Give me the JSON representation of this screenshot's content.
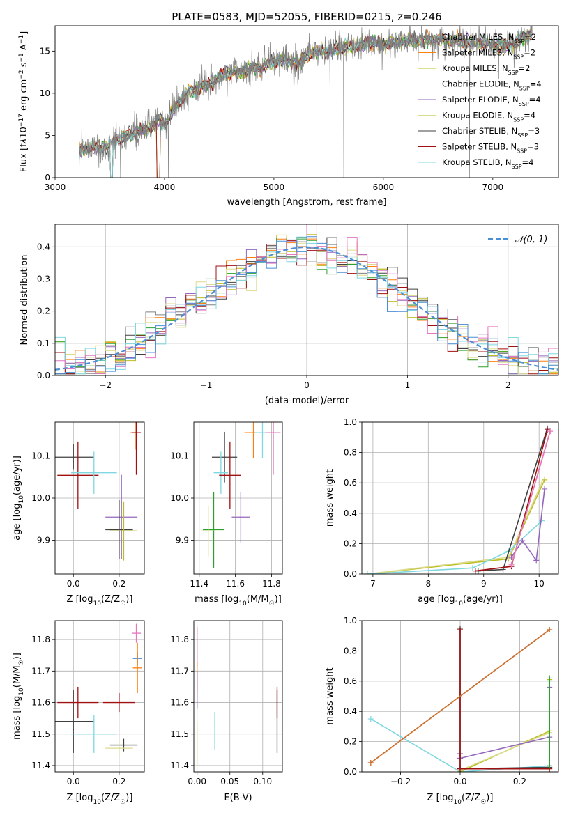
{
  "title": "PLATE=0583, MJD=52055, FIBERID=0215, z=0.246",
  "colors": {
    "chabrier_miles": "#808080",
    "salpeter_miles": "#ff7f0e",
    "kroupa_miles": "#bcbd22",
    "chabrier_elodie": "#2ca02c",
    "salpeter_elodie": "#9467bd",
    "kroupa_elodie": "#dbdb8d",
    "chabrier_stelib": "#404040",
    "salpeter_stelib": "#a01010",
    "kroupa_stelib": "#7fd8e0",
    "normal": "#4a8fd6",
    "grid": "#b0b0b0"
  },
  "legend": [
    {
      "label": "Chabrier MILES, N",
      "sub": "SSP",
      "suffix": "=2",
      "color": "#808080"
    },
    {
      "label": "Salpeter MILES, N",
      "sub": "SSP",
      "suffix": "=2",
      "color": "#ff7f0e"
    },
    {
      "label": "Kroupa MILES, N",
      "sub": "SSP",
      "suffix": "=2",
      "color": "#bcbd22"
    },
    {
      "label": "Chabrier ELODIE, N",
      "sub": "SSP",
      "suffix": "=4",
      "color": "#2ca02c"
    },
    {
      "label": "Salpeter ELODIE, N",
      "sub": "SSP",
      "suffix": "=4",
      "color": "#9467bd"
    },
    {
      "label": "Kroupa ELODIE, N",
      "sub": "SSP",
      "suffix": "=4",
      "color": "#dbdb8d"
    },
    {
      "label": "Chabrier STELIB, N",
      "sub": "SSP",
      "suffix": "=3",
      "color": "#404040"
    },
    {
      "label": "Salpeter STELIB, N",
      "sub": "SSP",
      "suffix": "=3",
      "color": "#a01010"
    },
    {
      "label": "Kroupa STELIB, N",
      "sub": "SSP",
      "suffix": "=4",
      "color": "#7fd8e0"
    }
  ],
  "chart_data": [
    {
      "type": "line",
      "xlabel": "wavelength [Angstrom, rest frame]",
      "ylabel_parts": [
        "Flux [f",
        "λ",
        "10",
        "−17",
        " erg cm",
        "−2",
        " s",
        "−1",
        " A",
        "−1",
        "]"
      ],
      "xlim": [
        3000,
        7600
      ],
      "ylim": [
        0,
        18
      ],
      "xticks": [
        3000,
        4000,
        5000,
        6000,
        7000
      ],
      "yticks": [
        0,
        5,
        10,
        15
      ],
      "continuum": [
        [
          3220,
          3.3
        ],
        [
          3300,
          3.5
        ],
        [
          3400,
          3.6
        ],
        [
          3480,
          3.5
        ],
        [
          3550,
          4.5
        ],
        [
          3650,
          5.0
        ],
        [
          3750,
          5.5
        ],
        [
          3850,
          5.8
        ],
        [
          3950,
          6.8
        ],
        [
          4000,
          6.2
        ],
        [
          4100,
          8.5
        ],
        [
          4200,
          10.0
        ],
        [
          4300,
          10.5
        ],
        [
          4400,
          11.0
        ],
        [
          4500,
          12.0
        ],
        [
          4600,
          12.5
        ],
        [
          4700,
          12.5
        ],
        [
          4800,
          13.0
        ],
        [
          4900,
          13.0
        ],
        [
          5000,
          13.8
        ],
        [
          5100,
          14.0
        ],
        [
          5200,
          13.5
        ],
        [
          5300,
          14.5
        ],
        [
          5400,
          15.0
        ],
        [
          5500,
          15.0
        ],
        [
          5600,
          15.5
        ],
        [
          5700,
          15.5
        ],
        [
          5800,
          15.8
        ],
        [
          5900,
          16.0
        ],
        [
          6000,
          15.8
        ],
        [
          6100,
          16.0
        ],
        [
          6200,
          16.2
        ],
        [
          6300,
          16.2
        ],
        [
          6400,
          16.3
        ],
        [
          6500,
          16.3
        ],
        [
          6600,
          16.2
        ],
        [
          6700,
          16.2
        ],
        [
          6800,
          16.0
        ],
        [
          6900,
          16.0
        ],
        [
          7000,
          15.8
        ],
        [
          7100,
          15.5
        ],
        [
          7200,
          16.0
        ],
        [
          7350,
          17.0
        ]
      ]
    },
    {
      "type": "histogram",
      "xlabel": "(data-model)/error",
      "ylabel": "Normed distribution",
      "xlim": [
        -2.5,
        2.5
      ],
      "ylim": [
        0,
        0.47
      ],
      "xticks": [
        -2,
        -1,
        0,
        1,
        2
      ],
      "xtick_labels": [
        "−2",
        "−1",
        "0",
        "1",
        "2"
      ],
      "yticks": [
        0.0,
        0.1,
        0.2,
        0.3,
        0.4
      ],
      "bin_width": 0.1,
      "legend_label": "𝒩(0, 1)"
    },
    {
      "type": "scatter",
      "name": "age_vs_Z",
      "xlabel_parts": [
        "Z [log",
        "10",
        "(Z/Z",
        "☉",
        ")]"
      ],
      "ylabel_parts": [
        "age  [log",
        "10",
        "(age/yr)]"
      ],
      "xlim": [
        -0.08,
        0.31
      ],
      "ylim": [
        9.82,
        10.18
      ],
      "xticks": [
        0.0,
        0.2
      ],
      "yticks": [
        9.9,
        10.0,
        10.1
      ],
      "points": [
        {
          "x": 0.0,
          "y": 10.097,
          "xerr": 0.09,
          "yerr": 0.03,
          "c": "#404040"
        },
        {
          "x": 0.02,
          "y": 10.054,
          "xerr": 0.09,
          "yerr": 0.08,
          "c": "#a01010"
        },
        {
          "x": 0.09,
          "y": 10.06,
          "xerr": 0.1,
          "yerr": 0.05,
          "c": "#7fd8e0"
        },
        {
          "x": 0.21,
          "y": 9.955,
          "xerr": 0.07,
          "yerr": 0.1,
          "c": "#9467bd"
        },
        {
          "x": 0.2,
          "y": 9.925,
          "xerr": 0.06,
          "yerr": 0.07,
          "c": "#404040"
        },
        {
          "x": 0.22,
          "y": 9.922,
          "xerr": 0.06,
          "yerr": 0.07,
          "c": "#bcbd22"
        },
        {
          "x": 0.27,
          "y": 10.155,
          "xerr": 0.02,
          "yerr": 0.04,
          "c": "#e377c2"
        },
        {
          "x": 0.27,
          "y": 10.155,
          "xerr": 0.02,
          "yerr": 0.04,
          "c": "#ff7f0e"
        },
        {
          "x": 0.275,
          "y": 10.155,
          "xerr": 0.02,
          "yerr": 0.1,
          "c": "#a01010"
        }
      ]
    },
    {
      "type": "scatter",
      "name": "age_vs_mass",
      "xlabel_parts": [
        "mass [log",
        "10",
        "(M/M",
        "☉",
        ")]"
      ],
      "xlim": [
        11.37,
        11.86
      ],
      "ylim": [
        9.82,
        10.18
      ],
      "xticks": [
        11.4,
        11.6,
        11.8
      ],
      "yticks": [
        9.9,
        10.0,
        10.1
      ],
      "points": [
        {
          "x": 11.54,
          "y": 10.097,
          "xerr": 0.07,
          "yerr": 0.06,
          "c": "#404040"
        },
        {
          "x": 11.52,
          "y": 10.06,
          "xerr": 0.04,
          "yerr": 0.05,
          "c": "#7fd8e0"
        },
        {
          "x": 11.57,
          "y": 10.054,
          "xerr": 0.06,
          "yerr": 0.08,
          "c": "#a01010"
        },
        {
          "x": 11.48,
          "y": 9.925,
          "xerr": 0.06,
          "yerr": 0.09,
          "c": "#2ca02c"
        },
        {
          "x": 11.45,
          "y": 9.922,
          "xerr": 0.04,
          "yerr": 0.06,
          "c": "#dbdb8d"
        },
        {
          "x": 11.63,
          "y": 9.955,
          "xerr": 0.05,
          "yerr": 0.06,
          "c": "#9467bd"
        },
        {
          "x": 11.7,
          "y": 10.155,
          "xerr": 0.05,
          "yerr": 0.06,
          "c": "#ff7f0e"
        },
        {
          "x": 11.75,
          "y": 10.155,
          "xerr": 0.04,
          "yerr": 0.06,
          "c": "#7fd8e0"
        },
        {
          "x": 11.81,
          "y": 10.155,
          "xerr": 0.04,
          "yerr": 0.1,
          "c": "#e377c2"
        }
      ]
    },
    {
      "type": "line",
      "name": "mass_weight_vs_age",
      "xlabel_parts": [
        "age  [log",
        "10",
        "(age/yr)]"
      ],
      "ylabel": "mass weight",
      "xlim": [
        6.8,
        10.35
      ],
      "ylim": [
        0,
        1
      ],
      "xticks": [
        7,
        8,
        9,
        10
      ],
      "yticks": [
        0.0,
        0.2,
        0.4,
        0.6,
        0.8,
        1.0
      ],
      "series": [
        {
          "c": "#bcbd22",
          "pts": [
            [
              6.9,
              0.0
            ],
            [
              9.45,
              0.1
            ],
            [
              10.1,
              0.62
            ]
          ]
        },
        {
          "c": "#dbdb8d",
          "pts": [
            [
              6.9,
              0.0
            ],
            [
              9.45,
              0.11
            ],
            [
              10.05,
              0.6
            ]
          ]
        },
        {
          "c": "#7fd8e0",
          "pts": [
            [
              6.9,
              0.0
            ],
            [
              8.8,
              0.04
            ],
            [
              9.45,
              0.15
            ],
            [
              10.05,
              0.35
            ]
          ]
        },
        {
          "c": "#404040",
          "pts": [
            [
              8.9,
              0.02
            ],
            [
              9.35,
              0.03
            ],
            [
              10.15,
              0.96
            ]
          ]
        },
        {
          "c": "#a01010",
          "pts": [
            [
              8.85,
              0.02
            ],
            [
              9.5,
              0.05
            ],
            [
              10.15,
              0.95
            ]
          ]
        },
        {
          "c": "#9467bd",
          "pts": [
            [
              9.5,
              0.11
            ],
            [
              9.7,
              0.22
            ],
            [
              9.95,
              0.09
            ],
            [
              10.1,
              0.56
            ]
          ]
        },
        {
          "c": "#ff7f0e",
          "pts": [
            [
              9.5,
              0.06
            ],
            [
              10.2,
              0.94
            ]
          ]
        },
        {
          "c": "#e377c2",
          "pts": [
            [
              9.5,
              0.06
            ],
            [
              10.2,
              0.94
            ]
          ]
        }
      ]
    },
    {
      "type": "scatter",
      "name": "mass_vs_Z",
      "xlabel_parts": [
        "Z [log",
        "10",
        "(Z/Z",
        "☉",
        ")]"
      ],
      "ylabel_parts": [
        "mass [log",
        "10",
        "(M/M",
        "☉",
        ")]"
      ],
      "xlim": [
        -0.08,
        0.31
      ],
      "ylim": [
        11.38,
        11.86
      ],
      "xticks": [
        0.0,
        0.2
      ],
      "yticks": [
        11.4,
        11.5,
        11.6,
        11.7,
        11.8
      ],
      "points": [
        {
          "x": 0.0,
          "y": 11.54,
          "xerr": 0.09,
          "yerr": 0.1,
          "c": "#404040"
        },
        {
          "x": 0.02,
          "y": 11.6,
          "xerr": 0.09,
          "yerr": 0.05,
          "c": "#a01010"
        },
        {
          "x": 0.09,
          "y": 11.5,
          "xerr": 0.1,
          "yerr": 0.06,
          "c": "#7fd8e0"
        },
        {
          "x": 0.2,
          "y": 11.6,
          "xerr": 0.07,
          "yerr": 0.03,
          "c": "#a01010"
        },
        {
          "x": 0.22,
          "y": 11.465,
          "xerr": 0.06,
          "yerr": 0.02,
          "c": "#404040"
        },
        {
          "x": 0.2,
          "y": 11.455,
          "xerr": 0.06,
          "yerr": 0.02,
          "c": "#dbdb8d"
        },
        {
          "x": 0.275,
          "y": 11.82,
          "xerr": 0.02,
          "yerr": 0.03,
          "c": "#e377c2"
        },
        {
          "x": 0.28,
          "y": 11.74,
          "xerr": 0.02,
          "yerr": 0.02,
          "c": "#4a8fd6"
        },
        {
          "x": 0.28,
          "y": 11.71,
          "xerr": 0.02,
          "yerr": 0.08,
          "c": "#ff7f0e"
        }
      ]
    },
    {
      "type": "scatter",
      "name": "mass_vs_ebv",
      "xlabel": "E(B-V)",
      "xlim": [
        -0.005,
        0.13
      ],
      "ylim": [
        11.38,
        11.86
      ],
      "xticks": [
        0.0,
        0.05,
        0.1
      ],
      "xtick_labels": [
        "0.00",
        "0.05",
        "0.10"
      ],
      "yticks": [
        11.4,
        11.5,
        11.6,
        11.7,
        11.8
      ],
      "points": [
        {
          "x": 0.0,
          "y": 11.78,
          "xerr": 0,
          "yerr": 0.06,
          "c": "#e377c2"
        },
        {
          "x": 0.0,
          "y": 11.68,
          "xerr": 0,
          "yerr": 0.05,
          "c": "#ff7f0e"
        },
        {
          "x": 0.0,
          "y": 11.64,
          "xerr": 0,
          "yerr": 0.06,
          "c": "#9467bd"
        },
        {
          "x": 0.0,
          "y": 11.47,
          "xerr": 0,
          "yerr": 0.07,
          "c": "#dbdb8d"
        },
        {
          "x": 0.027,
          "y": 11.51,
          "xerr": 0,
          "yerr": 0.06,
          "c": "#7fd8e0"
        },
        {
          "x": 0.122,
          "y": 11.54,
          "xerr": 0,
          "yerr": 0.1,
          "c": "#404040"
        },
        {
          "x": 0.122,
          "y": 11.6,
          "xerr": 0,
          "yerr": 0.05,
          "c": "#a01010"
        }
      ]
    },
    {
      "type": "line",
      "name": "mass_weight_vs_Z",
      "xlabel_parts": [
        "Z [log",
        "10",
        "(Z/Z",
        "☉",
        ")]"
      ],
      "ylabel": "mass weight",
      "xlim": [
        -0.33,
        0.33
      ],
      "ylim": [
        0,
        1
      ],
      "xticks": [
        -0.2,
        0.0,
        0.2
      ],
      "xtick_labels": [
        "−0.2",
        "0.0",
        "0.2"
      ],
      "yticks": [
        0.0,
        0.2,
        0.4,
        0.6,
        0.8,
        1.0
      ],
      "series": [
        {
          "c": "#7fd8e0",
          "pts": [
            [
              -0.3,
              0.35
            ],
            [
              0.0,
              0.0
            ],
            [
              0.3,
              0.04
            ],
            [
              0.3,
              0.6
            ]
          ]
        },
        {
          "c": "#bcbd22",
          "pts": [
            [
              0.0,
              0.0
            ],
            [
              0.3,
              0.27
            ],
            [
              0.3,
              0.61
            ]
          ]
        },
        {
          "c": "#dbdb8d",
          "pts": [
            [
              0.0,
              0.01
            ],
            [
              0.3,
              0.26
            ]
          ]
        },
        {
          "c": "#9467bd",
          "pts": [
            [
              0.0,
              0.12
            ],
            [
              0.0,
              0.09
            ],
            [
              0.3,
              0.23
            ],
            [
              0.3,
              0.56
            ]
          ]
        },
        {
          "c": "#404040",
          "pts": [
            [
              0.0,
              0.95
            ],
            [
              0.0,
              0.02
            ],
            [
              0.3,
              0.03
            ]
          ]
        },
        {
          "c": "#a01010",
          "pts": [
            [
              0.0,
              0.94
            ],
            [
              0.0,
              0.02
            ],
            [
              0.3,
              0.02
            ]
          ]
        },
        {
          "c": "#2ca02c",
          "pts": [
            [
              0.3,
              0.04
            ],
            [
              0.3,
              0.62
            ]
          ]
        },
        {
          "c": "#ff7f0e",
          "pts": [
            [
              -0.3,
              0.06
            ],
            [
              0.3,
              0.94
            ]
          ]
        },
        {
          "c": "#c87137",
          "pts": [
            [
              -0.3,
              0.06
            ],
            [
              0.3,
              0.94
            ]
          ]
        }
      ]
    }
  ]
}
